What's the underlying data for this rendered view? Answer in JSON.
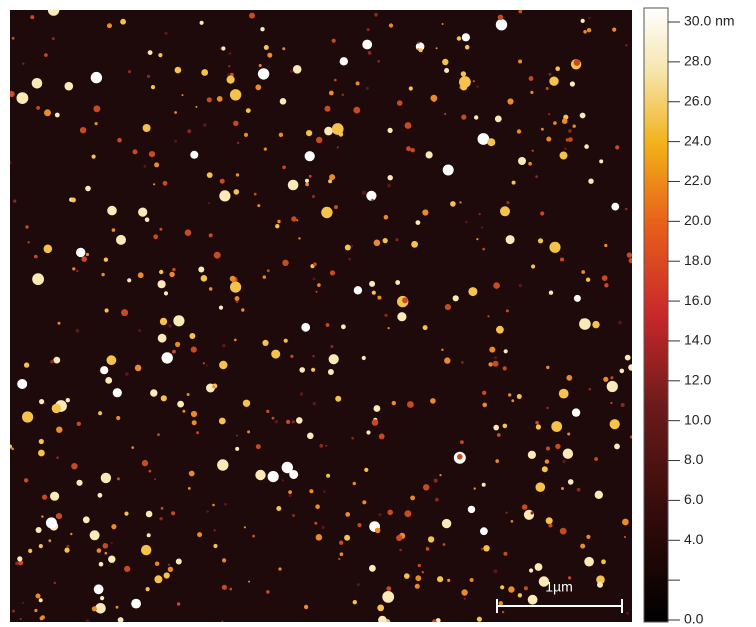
{
  "image": {
    "scale_bar_label": "1µm"
  },
  "colorbar": {
    "lim": [
      0,
      30
    ],
    "ticks": [
      {
        "value": 0,
        "label": "0.0"
      },
      {
        "value": 2,
        "label": null
      },
      {
        "value": 4,
        "label": "4.0"
      },
      {
        "value": 6,
        "label": "6.0"
      },
      {
        "value": 8,
        "label": "8.0"
      },
      {
        "value": 10,
        "label": "10.0"
      },
      {
        "value": 12,
        "label": "12.0"
      },
      {
        "value": 14,
        "label": "14.0"
      },
      {
        "value": 16,
        "label": "16.0"
      },
      {
        "value": 18,
        "label": "18.0"
      },
      {
        "value": 20,
        "label": "20.0"
      },
      {
        "value": 22,
        "label": "22.0"
      },
      {
        "value": 24,
        "label": "24.0"
      },
      {
        "value": 26,
        "label": "26.0"
      },
      {
        "value": 28,
        "label": "28.0"
      },
      {
        "value": 30,
        "label": "30.0 nm"
      }
    ]
  }
}
